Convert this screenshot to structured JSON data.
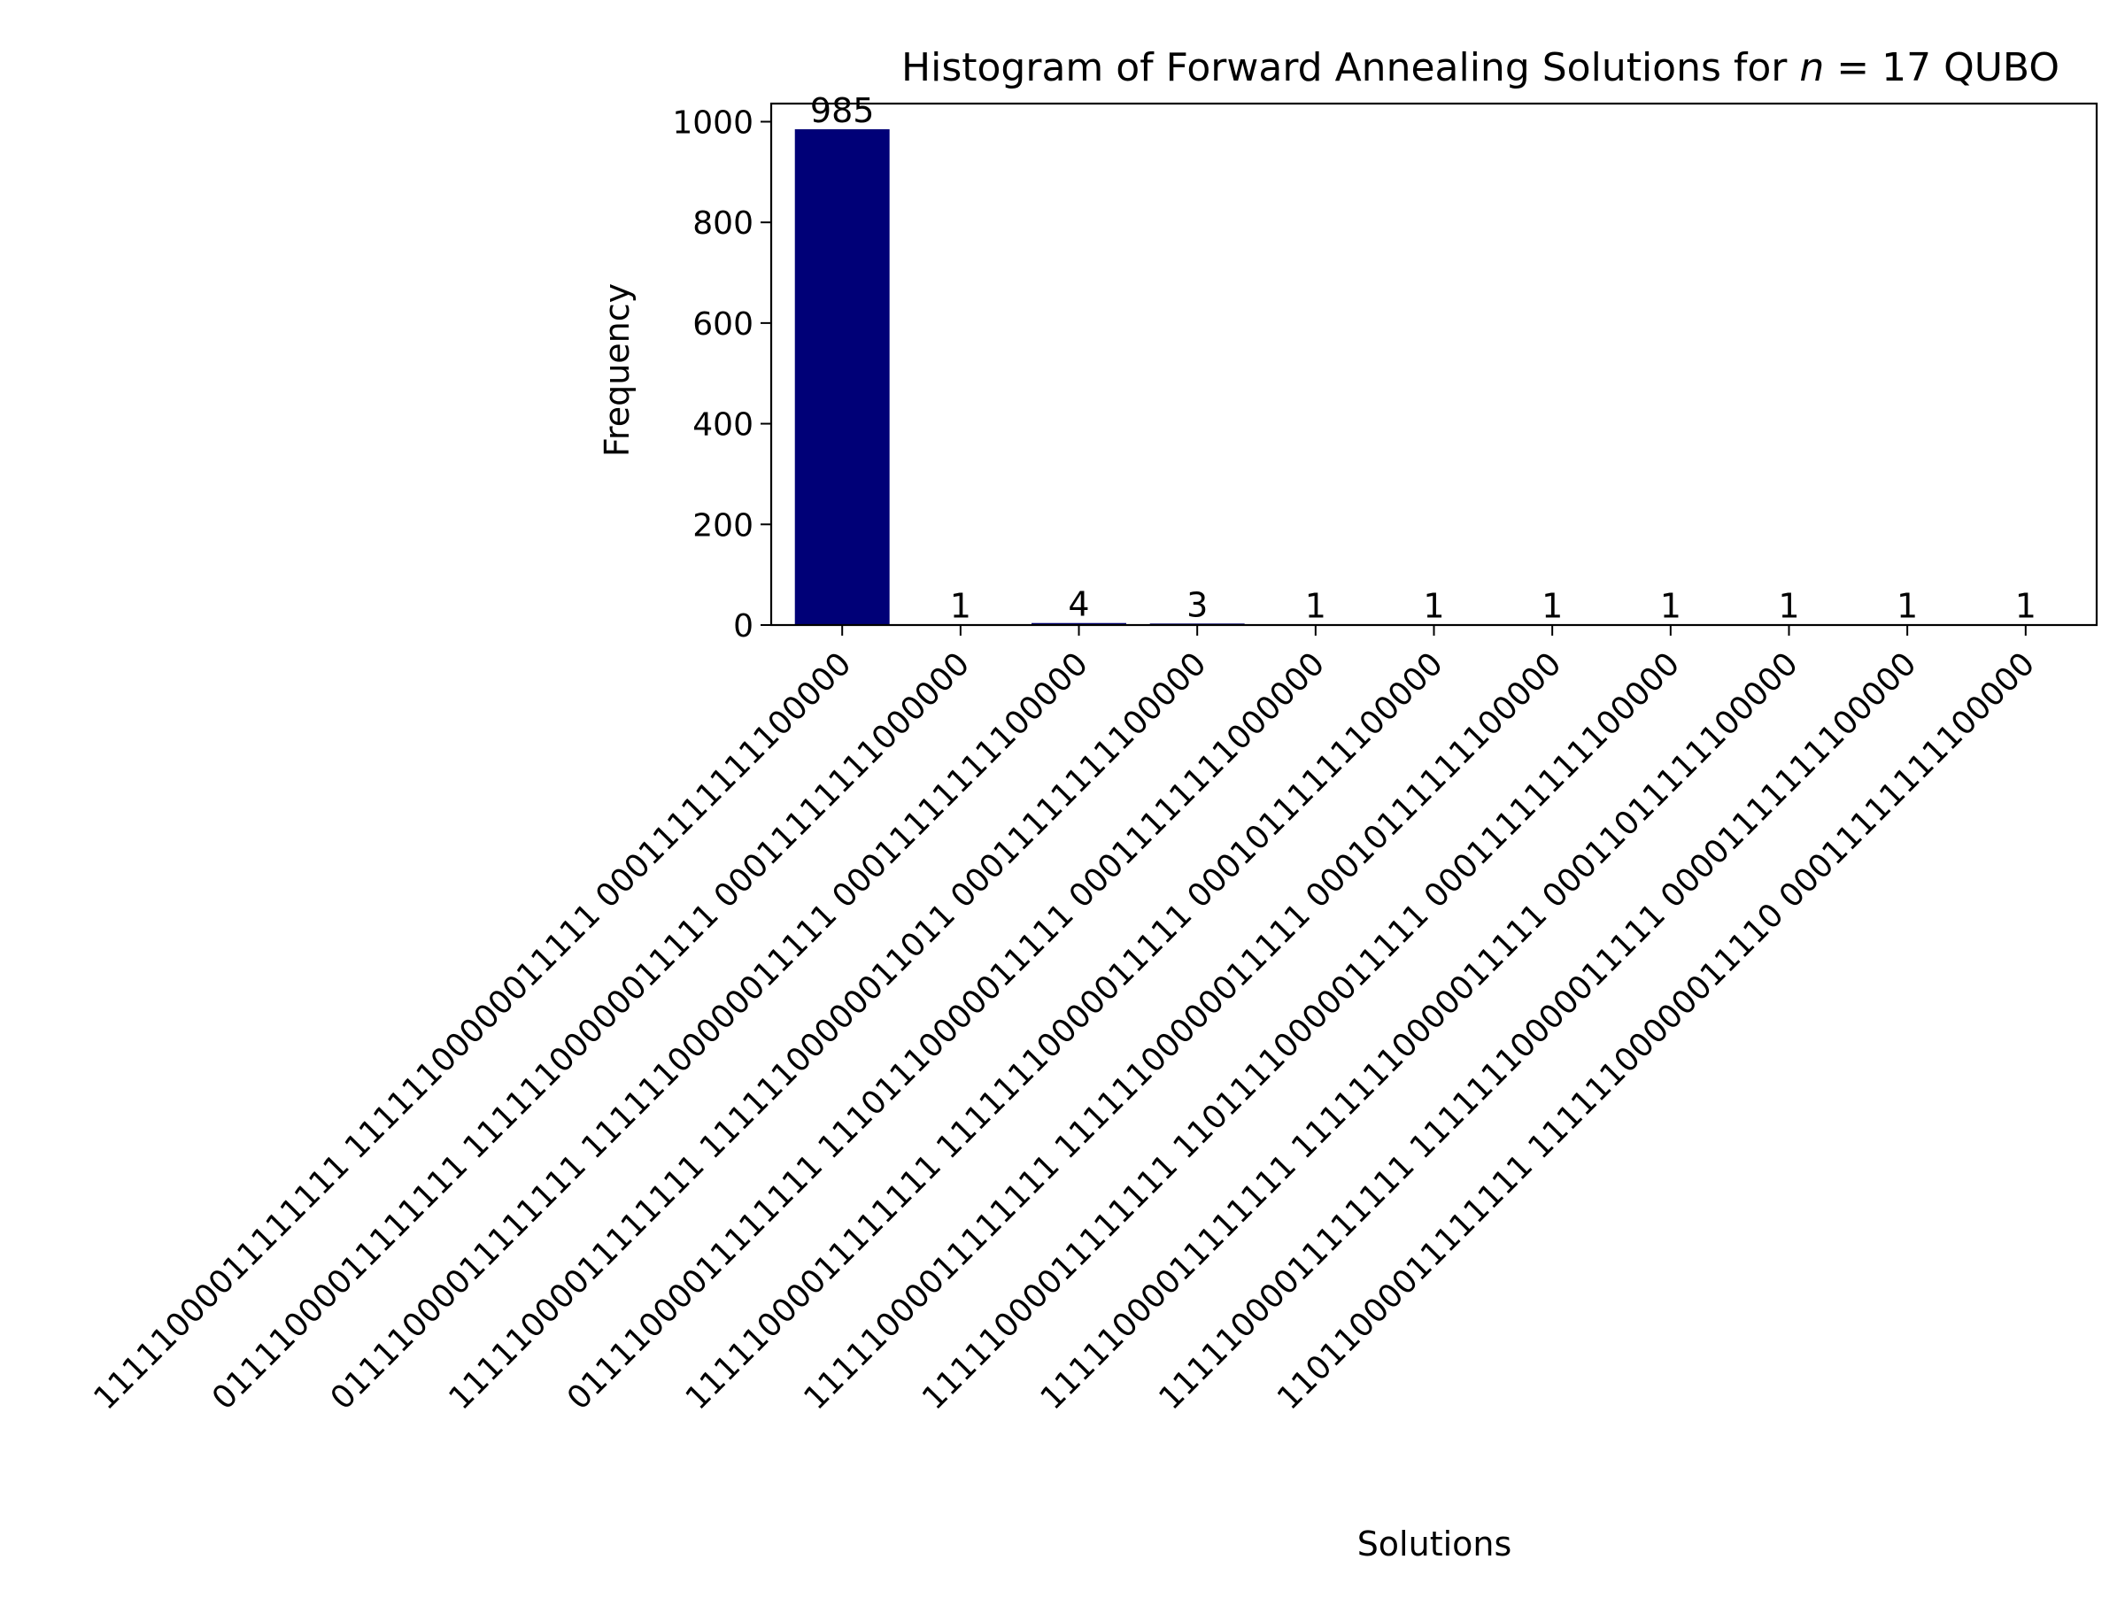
{
  "chart_data": {
    "type": "bar",
    "title": {
      "prefix": "Histogram of Forward Annealing Solutions for ",
      "math_var": "n",
      "math_rest": " = 17",
      "suffix": " QUBO"
    },
    "xlabel": "Solutions",
    "ylabel": "Frequency",
    "ylim": [
      0,
      1036
    ],
    "yticks": [
      0,
      200,
      400,
      600,
      800,
      1000
    ],
    "grid": false,
    "bar_color": "#000077",
    "categories": [
      "11111000011111111 11111100000011111 00011111111100000",
      "01111000011111111 11111100000011111 00011111111000000",
      "01111000011111111 11111100000011111 00011111111100000",
      "11111000011111111 11111100000011011 00011111111100000",
      "01111000011111111 11101110000011111 00011111111000000",
      "11111000011111111 11111110000011111 00010111111100000",
      "11111000011111111 11111100000011111 00010111111100000",
      "11111000011111111 11011110000011111 00011111111100000",
      "11111000011111111 11111110000011111 00011011111100000",
      "11111000011111111 11111110000011111 00001111111100000",
      "11011000011111111 11111100000011110 00011111111100000"
    ],
    "values": [
      985,
      1,
      4,
      3,
      1,
      1,
      1,
      1,
      1,
      1,
      1
    ]
  }
}
